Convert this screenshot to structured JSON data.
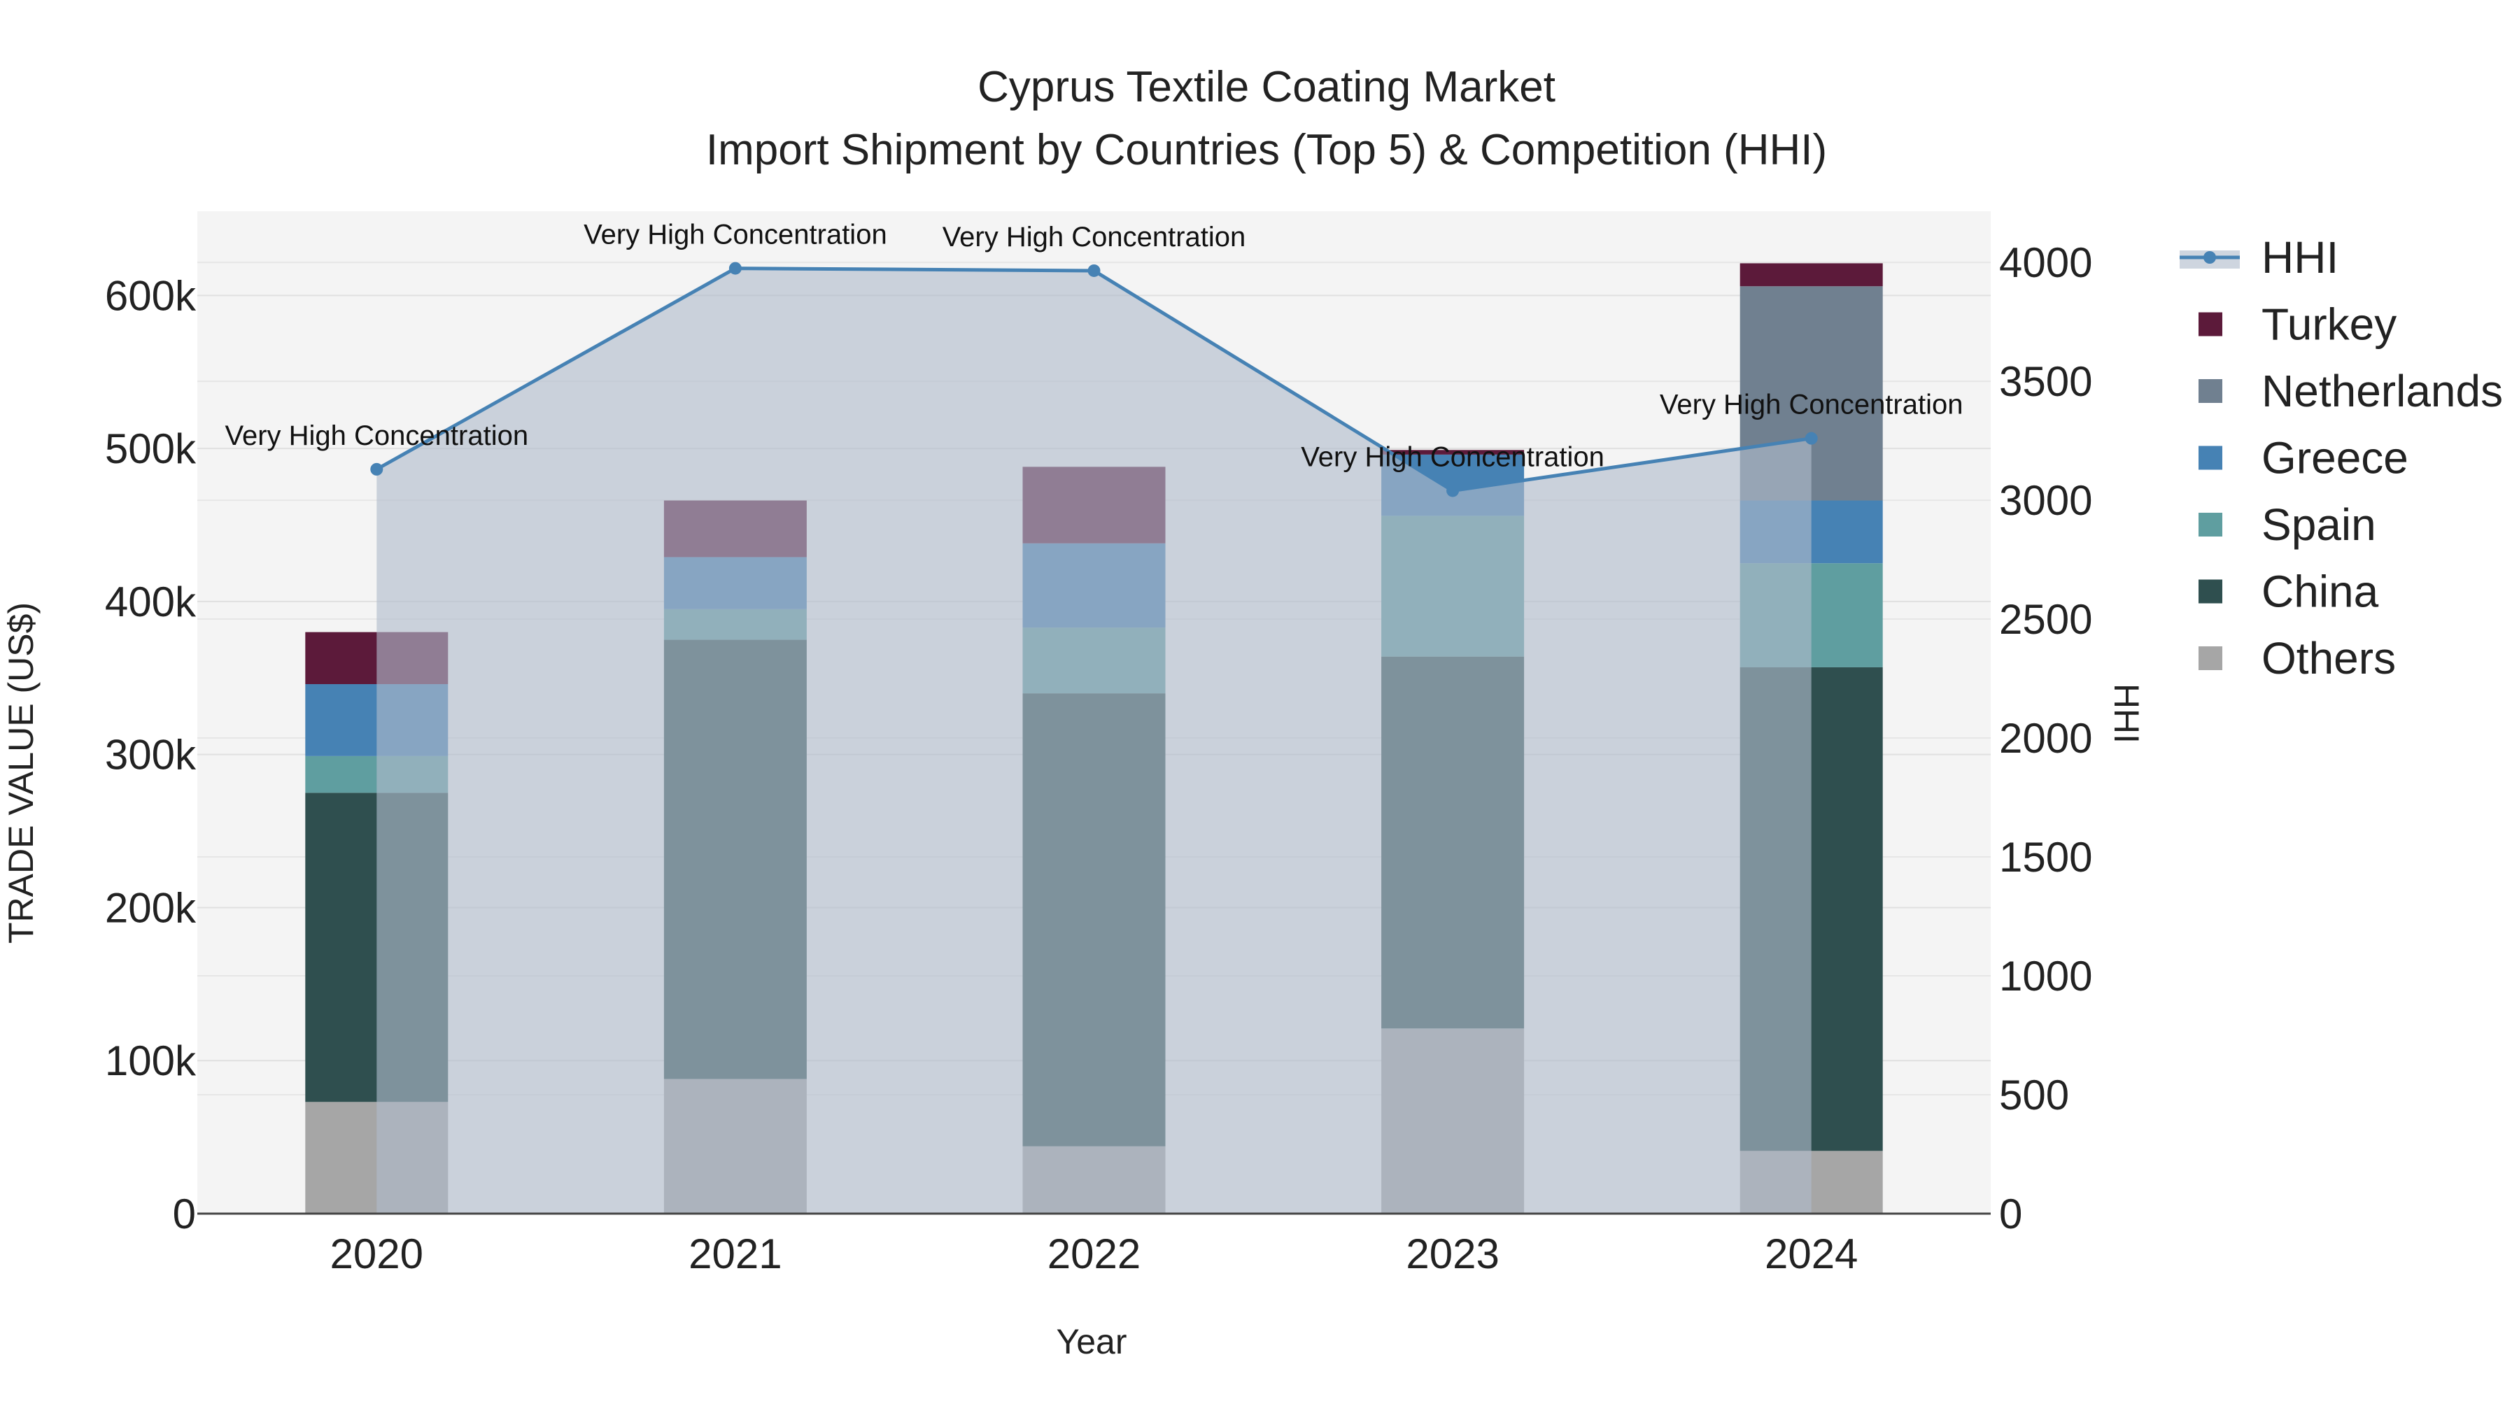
{
  "chart_data": {
    "type": "bar",
    "title_line1": "Cyprus Textile Coating Market",
    "title_line2": "Import Shipment by Countries (Top 5) & Competition (HHI)",
    "xlabel": "Year",
    "ylabel": "TRADE VALUE (US$)",
    "y2label": "HHI",
    "categories": [
      "2020",
      "2021",
      "2022",
      "2023",
      "2024"
    ],
    "ylim": [
      0,
      655000
    ],
    "y2lim": [
      0,
      4215
    ],
    "yticks": [
      {
        "value": 0,
        "label": "0"
      },
      {
        "value": 100000,
        "label": "100k"
      },
      {
        "value": 200000,
        "label": "200k"
      },
      {
        "value": 300000,
        "label": "300k"
      },
      {
        "value": 400000,
        "label": "400k"
      },
      {
        "value": 500000,
        "label": "500k"
      },
      {
        "value": 600000,
        "label": "600k"
      }
    ],
    "y2ticks": [
      {
        "value": 0,
        "label": "0"
      },
      {
        "value": 500,
        "label": "500"
      },
      {
        "value": 1000,
        "label": "1000"
      },
      {
        "value": 1500,
        "label": "1500"
      },
      {
        "value": 2000,
        "label": "2000"
      },
      {
        "value": 2500,
        "label": "2500"
      },
      {
        "value": 3000,
        "label": "3000"
      },
      {
        "value": 3500,
        "label": "3500"
      },
      {
        "value": 4000,
        "label": "4000"
      }
    ],
    "series": [
      {
        "name": "Others",
        "color": "#a6a6a6",
        "values": [
          73000,
          88000,
          44000,
          121000,
          41000
        ]
      },
      {
        "name": "China",
        "color": "#2f4f4f",
        "values": [
          202000,
          287000,
          296000,
          243000,
          316000
        ]
      },
      {
        "name": "Spain",
        "color": "#5f9ea0",
        "values": [
          24000,
          20000,
          43000,
          92000,
          68000
        ]
      },
      {
        "name": "Greece",
        "color": "#4682b4",
        "values": [
          47000,
          34000,
          55000,
          40000,
          41000
        ]
      },
      {
        "name": "Netherlands",
        "color": "#708090",
        "values": [
          0,
          0,
          0,
          0,
          140000
        ]
      },
      {
        "name": "Turkey",
        "color": "#5c1a3a",
        "values": [
          34000,
          37000,
          50000,
          3000,
          15000
        ]
      }
    ],
    "hhi": {
      "name": "HHI",
      "color": "#4682b4",
      "values": [
        3130,
        3975,
        3965,
        3040,
        3260
      ],
      "annotations": [
        "Very High Concentration",
        "Very High Concentration",
        "Very High Concentration",
        "Very High Concentration",
        "Very High Concentration"
      ]
    },
    "legend_order": [
      "HHI",
      "Turkey",
      "Netherlands",
      "Greece",
      "Spain",
      "China",
      "Others"
    ]
  }
}
